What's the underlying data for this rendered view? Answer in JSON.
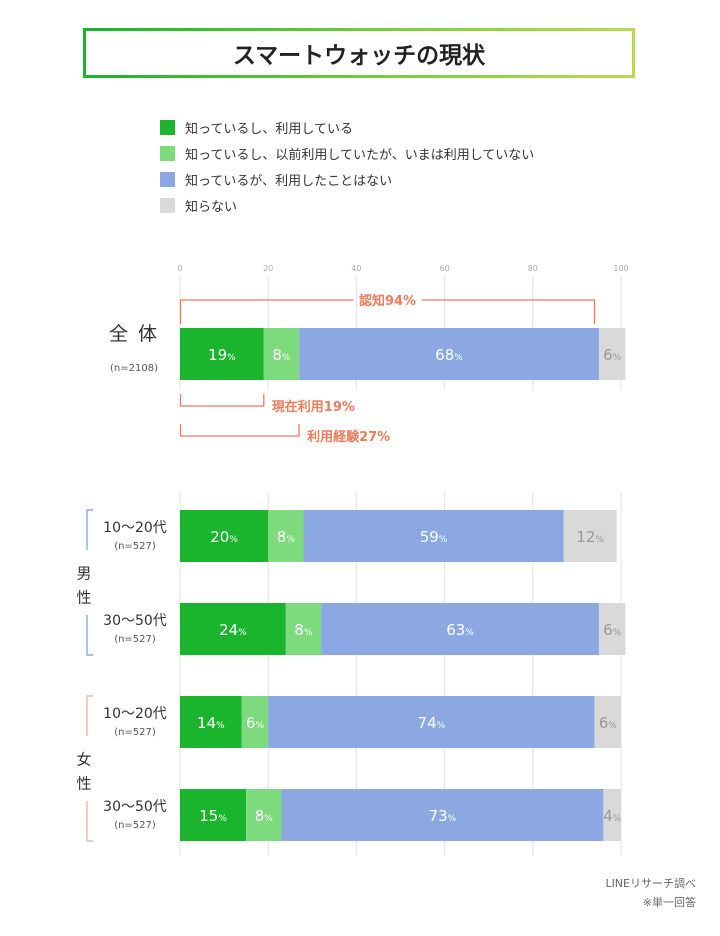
{
  "title": "スマートウォッチの現状",
  "legend": [
    {
      "label": "知っているし、利用している",
      "color": "#1ab52d"
    },
    {
      "label": "知っているし、以前利用していたが、いまは利用していない",
      "color": "#7ddb7e"
    },
    {
      "label": "知っているが、利用したことはない",
      "color": "#8ba8e3"
    },
    {
      "label": "知らない",
      "color": "#d9d9d9"
    }
  ],
  "footer": {
    "source": "LINEリサーチ調べ",
    "note": "※単一回答"
  },
  "chart_data": {
    "type": "bar",
    "orientation": "horizontal",
    "stacked": true,
    "xlim": [
      0,
      100
    ],
    "x_ticks": [
      "0",
      "20",
      "40",
      "60",
      "80",
      "100"
    ],
    "series": [
      {
        "name": "知っているし、利用している",
        "color": "#1ab52d"
      },
      {
        "name": "知っているし、以前利用していたが、いまは利用していない",
        "color": "#7ddb7e"
      },
      {
        "name": "知っているが、利用したことはない",
        "color": "#8ba8e3"
      },
      {
        "name": "知らない",
        "color": "#d9d9d9"
      }
    ],
    "rows": [
      {
        "label": "全 体",
        "n": "(n=2108)",
        "values": [
          19,
          8,
          68,
          6
        ],
        "labels": [
          "19",
          "8",
          "68",
          "6"
        ]
      },
      {
        "group": "男性",
        "label": "10〜20代",
        "n": "(n=527)",
        "values": [
          20,
          8,
          59,
          12
        ],
        "labels": [
          "20",
          "8",
          "59",
          "12"
        ]
      },
      {
        "group": "男性",
        "label": "30〜50代",
        "n": "(n=527)",
        "values": [
          24,
          8,
          63,
          6
        ],
        "labels": [
          "24",
          "8",
          "63",
          "6"
        ]
      },
      {
        "group": "女性",
        "label": "10〜20代",
        "n": "(n=527)",
        "values": [
          14,
          6,
          74,
          6
        ],
        "labels": [
          "14",
          "6",
          "74",
          "6"
        ]
      },
      {
        "group": "女性",
        "label": "30〜50代",
        "n": "(n=527)",
        "values": [
          15,
          8,
          73,
          4
        ],
        "labels": [
          "15",
          "8",
          "73",
          "4"
        ]
      }
    ],
    "groups": [
      {
        "name": "男性",
        "chars": [
          "男",
          "性"
        ],
        "color": "#8ba8e3"
      },
      {
        "name": "女性",
        "chars": [
          "女",
          "性"
        ],
        "color": "#f2b7a6"
      }
    ],
    "value_suffix": "%",
    "annotations": [
      {
        "text": "認知94%",
        "from": 0,
        "to": 94,
        "position": "above"
      },
      {
        "text": "現在利用19%",
        "from": 0,
        "to": 19,
        "position": "below"
      },
      {
        "text": "利用経験27%",
        "from": 0,
        "to": 27,
        "position": "below"
      }
    ],
    "annotation_color": "#f07b5a"
  }
}
